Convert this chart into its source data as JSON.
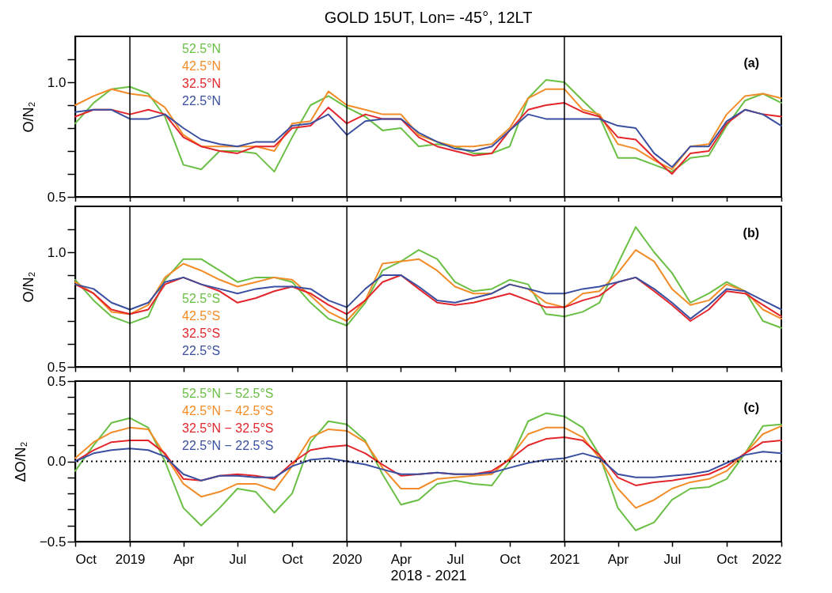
{
  "chart_data": [
    {
      "type": "line",
      "title": "GOLD 15UT, Lon= -45°, 12LT",
      "ylabel": "O/N₂",
      "annotations": [
        "(a)"
      ],
      "tick_labels": "y",
      "x": [
        "2018-10",
        "2018-11",
        "2018-12",
        "2019-01",
        "2019-02",
        "2019-03",
        "2019-04",
        "2019-05",
        "2019-06",
        "2019-07",
        "2019-08",
        "2019-09",
        "2019-10",
        "2019-11",
        "2019-12",
        "2020-01",
        "2020-02",
        "2020-03",
        "2020-04",
        "2020-05",
        "2020-06",
        "2020-07",
        "2020-08",
        "2020-09",
        "2020-10",
        "2020-11",
        "2020-12",
        "2021-01",
        "2021-02",
        "2021-03",
        "2021-04",
        "2021-05",
        "2021-06",
        "2021-07",
        "2021-08",
        "2021-09",
        "2021-10",
        "2021-11",
        "2021-12",
        "2022-01"
      ],
      "xlim": [
        "2018-10",
        "2022-01"
      ],
      "xticks": [
        {
          "value": "2018-10",
          "label": null
        },
        {
          "value": "2019-01",
          "label": null
        },
        {
          "value": "2019-04",
          "label": null
        },
        {
          "value": "2019-07",
          "label": null
        },
        {
          "value": "2019-10",
          "label": null
        },
        {
          "value": "2020-01",
          "label": null
        },
        {
          "value": "2020-04",
          "label": null
        },
        {
          "value": "2020-07",
          "label": null
        },
        {
          "value": "2020-10",
          "label": null
        },
        {
          "value": "2021-01",
          "label": null
        },
        {
          "value": "2021-04",
          "label": null
        },
        {
          "value": "2021-07",
          "label": null
        },
        {
          "value": "2021-10",
          "label": null
        },
        {
          "value": "2022-01",
          "label": null
        }
      ],
      "ylim": [
        0.5,
        1.2
      ],
      "yticks": [
        {
          "value": 0.5,
          "label": "0.5"
        },
        {
          "value": 0.6,
          "label": null
        },
        {
          "value": 0.7,
          "label": null
        },
        {
          "value": 0.8,
          "label": null
        },
        {
          "value": 0.9,
          "label": null
        },
        {
          "value": 1.0,
          "label": "1.0"
        },
        {
          "value": 1.1,
          "label": null
        }
      ],
      "ref_lines": [
        {
          "axis": "x",
          "value": "2019-01",
          "color": "#000000"
        },
        {
          "axis": "x",
          "value": "2020-01",
          "color": "#000000"
        },
        {
          "axis": "x",
          "value": "2021-01",
          "color": "#000000"
        }
      ],
      "series": [
        {
          "name": "52.5°N",
          "color": "#6abf45",
          "values": [
            0.82,
            0.91,
            0.97,
            0.98,
            0.95,
            0.85,
            0.64,
            0.62,
            0.7,
            0.7,
            0.69,
            0.61,
            0.76,
            0.9,
            0.94,
            0.89,
            0.85,
            0.79,
            0.8,
            0.72,
            0.73,
            0.72,
            0.69,
            0.69,
            0.72,
            0.93,
            1.01,
            1.0,
            0.92,
            0.85,
            0.67,
            0.67,
            0.64,
            0.61,
            0.67,
            0.68,
            0.81,
            0.92,
            0.95,
            0.91
          ]
        },
        {
          "name": "42.5°N",
          "color": "#f28c28",
          "values": [
            0.9,
            0.94,
            0.97,
            0.95,
            0.94,
            0.89,
            0.77,
            0.72,
            0.72,
            0.72,
            0.72,
            0.7,
            0.82,
            0.83,
            0.96,
            0.9,
            0.88,
            0.86,
            0.86,
            0.77,
            0.74,
            0.72,
            0.72,
            0.73,
            0.8,
            0.93,
            0.97,
            0.97,
            0.88,
            0.86,
            0.73,
            0.71,
            0.66,
            0.62,
            0.72,
            0.73,
            0.86,
            0.94,
            0.95,
            0.93
          ]
        },
        {
          "name": "32.5°N",
          "color": "#e3262b",
          "values": [
            0.85,
            0.88,
            0.88,
            0.86,
            0.88,
            0.86,
            0.76,
            0.72,
            0.7,
            0.69,
            0.72,
            0.72,
            0.8,
            0.81,
            0.89,
            0.82,
            0.86,
            0.84,
            0.84,
            0.76,
            0.72,
            0.7,
            0.68,
            0.69,
            0.79,
            0.88,
            0.9,
            0.91,
            0.87,
            0.85,
            0.76,
            0.75,
            0.67,
            0.6,
            0.69,
            0.7,
            0.82,
            0.88,
            0.86,
            0.85
          ]
        },
        {
          "name": "22.5°N",
          "color": "#3a4fa0",
          "values": [
            0.87,
            0.88,
            0.88,
            0.84,
            0.84,
            0.86,
            0.8,
            0.75,
            0.73,
            0.72,
            0.74,
            0.74,
            0.81,
            0.82,
            0.86,
            0.77,
            0.83,
            0.84,
            0.84,
            0.78,
            0.74,
            0.71,
            0.7,
            0.72,
            0.79,
            0.86,
            0.84,
            0.84,
            0.84,
            0.84,
            0.81,
            0.8,
            0.69,
            0.63,
            0.72,
            0.72,
            0.83,
            0.88,
            0.86,
            0.81
          ]
        }
      ]
    },
    {
      "type": "line",
      "ylabel": "O/N₂",
      "annotations": [
        "(b)"
      ],
      "tick_labels": "y",
      "x": [
        "2018-10",
        "2018-11",
        "2018-12",
        "2019-01",
        "2019-02",
        "2019-03",
        "2019-04",
        "2019-05",
        "2019-06",
        "2019-07",
        "2019-08",
        "2019-09",
        "2019-10",
        "2019-11",
        "2019-12",
        "2020-01",
        "2020-02",
        "2020-03",
        "2020-04",
        "2020-05",
        "2020-06",
        "2020-07",
        "2020-08",
        "2020-09",
        "2020-10",
        "2020-11",
        "2020-12",
        "2021-01",
        "2021-02",
        "2021-03",
        "2021-04",
        "2021-05",
        "2021-06",
        "2021-07",
        "2021-08",
        "2021-09",
        "2021-10",
        "2021-11",
        "2021-12",
        "2022-01"
      ],
      "xlim": [
        "2018-10",
        "2022-01"
      ],
      "xticks": [
        {
          "value": "2018-10",
          "label": null
        },
        {
          "value": "2019-01",
          "label": null
        },
        {
          "value": "2019-04",
          "label": null
        },
        {
          "value": "2019-07",
          "label": null
        },
        {
          "value": "2019-10",
          "label": null
        },
        {
          "value": "2020-01",
          "label": null
        },
        {
          "value": "2020-04",
          "label": null
        },
        {
          "value": "2020-07",
          "label": null
        },
        {
          "value": "2020-10",
          "label": null
        },
        {
          "value": "2021-01",
          "label": null
        },
        {
          "value": "2021-04",
          "label": null
        },
        {
          "value": "2021-07",
          "label": null
        },
        {
          "value": "2021-10",
          "label": null
        },
        {
          "value": "2022-01",
          "label": null
        }
      ],
      "ylim": [
        0.5,
        1.2
      ],
      "yticks": [
        {
          "value": 0.5,
          "label": "0.5"
        },
        {
          "value": 0.6,
          "label": null
        },
        {
          "value": 0.7,
          "label": null
        },
        {
          "value": 0.8,
          "label": null
        },
        {
          "value": 0.9,
          "label": null
        },
        {
          "value": 1.0,
          "label": "1.0"
        },
        {
          "value": 1.1,
          "label": null
        }
      ],
      "ref_lines": [
        {
          "axis": "x",
          "value": "2019-01",
          "color": "#000000"
        },
        {
          "axis": "x",
          "value": "2020-01",
          "color": "#000000"
        },
        {
          "axis": "x",
          "value": "2021-01",
          "color": "#000000"
        }
      ],
      "series": [
        {
          "name": "52.5°S",
          "color": "#6abf45",
          "values": [
            0.88,
            0.79,
            0.72,
            0.69,
            0.72,
            0.88,
            0.97,
            0.97,
            0.92,
            0.87,
            0.89,
            0.89,
            0.87,
            0.78,
            0.71,
            0.68,
            0.78,
            0.92,
            0.96,
            1.01,
            0.97,
            0.87,
            0.83,
            0.84,
            0.88,
            0.86,
            0.73,
            0.72,
            0.74,
            0.78,
            0.95,
            1.11,
            1.0,
            0.91,
            0.78,
            0.82,
            0.87,
            0.83,
            0.7,
            0.67
          ]
        },
        {
          "name": "42.5°S",
          "color": "#f28c28",
          "values": [
            0.87,
            0.82,
            0.74,
            0.73,
            0.77,
            0.89,
            0.95,
            0.92,
            0.88,
            0.85,
            0.87,
            0.89,
            0.88,
            0.81,
            0.74,
            0.7,
            0.79,
            0.95,
            0.96,
            0.97,
            0.92,
            0.85,
            0.82,
            0.82,
            0.86,
            0.84,
            0.78,
            0.76,
            0.82,
            0.83,
            0.91,
            1.01,
            0.96,
            0.84,
            0.77,
            0.79,
            0.86,
            0.83,
            0.75,
            0.71
          ]
        },
        {
          "name": "32.5°S",
          "color": "#e3262b",
          "values": [
            0.86,
            0.82,
            0.75,
            0.73,
            0.75,
            0.86,
            0.89,
            0.86,
            0.83,
            0.78,
            0.8,
            0.83,
            0.85,
            0.82,
            0.77,
            0.73,
            0.79,
            0.87,
            0.9,
            0.84,
            0.78,
            0.77,
            0.78,
            0.8,
            0.82,
            0.79,
            0.76,
            0.76,
            0.79,
            0.81,
            0.87,
            0.89,
            0.83,
            0.77,
            0.7,
            0.75,
            0.83,
            0.82,
            0.77,
            0.72
          ]
        },
        {
          "name": "22.5°S",
          "color": "#3a4fa0",
          "values": [
            0.86,
            0.84,
            0.78,
            0.75,
            0.78,
            0.87,
            0.89,
            0.86,
            0.84,
            0.82,
            0.84,
            0.85,
            0.85,
            0.84,
            0.79,
            0.76,
            0.84,
            0.9,
            0.9,
            0.85,
            0.79,
            0.78,
            0.8,
            0.82,
            0.86,
            0.84,
            0.82,
            0.82,
            0.84,
            0.85,
            0.87,
            0.89,
            0.84,
            0.78,
            0.71,
            0.77,
            0.84,
            0.83,
            0.79,
            0.75
          ]
        }
      ]
    },
    {
      "type": "line",
      "ylabel": "ΔO/N₂",
      "xlabel": "2018 - 2021",
      "annotations": [
        "(c)"
      ],
      "x": [
        "2018-10",
        "2018-11",
        "2018-12",
        "2019-01",
        "2019-02",
        "2019-03",
        "2019-04",
        "2019-05",
        "2019-06",
        "2019-07",
        "2019-08",
        "2019-09",
        "2019-10",
        "2019-11",
        "2019-12",
        "2020-01",
        "2020-02",
        "2020-03",
        "2020-04",
        "2020-05",
        "2020-06",
        "2020-07",
        "2020-08",
        "2020-09",
        "2020-10",
        "2020-11",
        "2020-12",
        "2021-01",
        "2021-02",
        "2021-03",
        "2021-04",
        "2021-05",
        "2021-06",
        "2021-07",
        "2021-08",
        "2021-09",
        "2021-10",
        "2021-11",
        "2021-12",
        "2022-01"
      ],
      "xlim": [
        "2018-10",
        "2022-01"
      ],
      "xticks": [
        {
          "value": "2018-10",
          "label": "Oct"
        },
        {
          "value": "2019-01",
          "label": "2019"
        },
        {
          "value": "2019-04",
          "label": "Apr"
        },
        {
          "value": "2019-07",
          "label": "Jul"
        },
        {
          "value": "2019-10",
          "label": "Oct"
        },
        {
          "value": "2020-01",
          "label": "2020"
        },
        {
          "value": "2020-04",
          "label": "Apr"
        },
        {
          "value": "2020-07",
          "label": "Jul"
        },
        {
          "value": "2020-10",
          "label": "Oct"
        },
        {
          "value": "2021-01",
          "label": "2021"
        },
        {
          "value": "2021-04",
          "label": "Apr"
        },
        {
          "value": "2021-07",
          "label": "Jul"
        },
        {
          "value": "2021-10",
          "label": "Oct"
        },
        {
          "value": "2022-01",
          "label": "2022"
        }
      ],
      "ylim": [
        -0.5,
        0.5
      ],
      "yticks": [
        {
          "value": -0.5,
          "label": "−0.5"
        },
        {
          "value": -0.4,
          "label": null
        },
        {
          "value": -0.3,
          "label": null
        },
        {
          "value": -0.2,
          "label": null
        },
        {
          "value": -0.1,
          "label": null
        },
        {
          "value": 0,
          "label": "0.0"
        },
        {
          "value": 0.1,
          "label": null
        },
        {
          "value": 0.2,
          "label": null
        },
        {
          "value": 0.3,
          "label": null
        },
        {
          "value": 0.4,
          "label": null
        },
        {
          "value": 0.5,
          "label": "0.5"
        }
      ],
      "ref_lines": [
        {
          "axis": "x",
          "value": "2019-01",
          "color": "#000000"
        },
        {
          "axis": "x",
          "value": "2020-01",
          "color": "#000000"
        },
        {
          "axis": "x",
          "value": "2021-01",
          "color": "#000000"
        },
        {
          "axis": "y",
          "value": 0,
          "color": "#000000",
          "line_style": "dotted"
        }
      ],
      "series": [
        {
          "name": "52.5°N − 52.5°S",
          "color": "#6abf45",
          "values": [
            -0.06,
            0.1,
            0.24,
            0.27,
            0.21,
            0.0,
            -0.29,
            -0.4,
            -0.29,
            -0.17,
            -0.19,
            -0.32,
            -0.2,
            0.12,
            0.25,
            0.23,
            0.13,
            -0.08,
            -0.27,
            -0.24,
            -0.14,
            -0.12,
            -0.14,
            -0.15,
            0.0,
            0.25,
            0.3,
            0.28,
            0.21,
            0.04,
            -0.29,
            -0.43,
            -0.38,
            -0.24,
            -0.17,
            -0.16,
            -0.11,
            0.05,
            0.22,
            0.23
          ]
        },
        {
          "name": "42.5°N − 42.5°S",
          "color": "#f28c28",
          "values": [
            0.02,
            0.12,
            0.18,
            0.21,
            0.2,
            0.04,
            -0.14,
            -0.22,
            -0.19,
            -0.14,
            -0.14,
            -0.18,
            -0.03,
            0.15,
            0.2,
            0.19,
            0.12,
            -0.04,
            -0.17,
            -0.17,
            -0.11,
            -0.1,
            -0.09,
            -0.08,
            0.02,
            0.17,
            0.21,
            0.21,
            0.15,
            0.02,
            -0.17,
            -0.29,
            -0.24,
            -0.17,
            -0.13,
            -0.11,
            -0.06,
            0.05,
            0.17,
            0.22
          ]
        },
        {
          "name": "32.5°N − 32.5°S",
          "color": "#e3262b",
          "values": [
            0.0,
            0.07,
            0.12,
            0.13,
            0.13,
            0.05,
            -0.11,
            -0.12,
            -0.09,
            -0.08,
            -0.09,
            -0.11,
            -0.01,
            0.07,
            0.09,
            0.1,
            0.05,
            -0.02,
            -0.09,
            -0.08,
            -0.07,
            -0.08,
            -0.08,
            -0.06,
            0.01,
            0.1,
            0.14,
            0.15,
            0.13,
            0.04,
            -0.1,
            -0.15,
            -0.13,
            -0.12,
            -0.1,
            -0.08,
            -0.03,
            0.05,
            0.12,
            0.13
          ]
        },
        {
          "name": "22.5°N − 22.5°S",
          "color": "#3a4fa0",
          "values": [
            0.0,
            0.05,
            0.07,
            0.08,
            0.07,
            0.03,
            -0.08,
            -0.12,
            -0.09,
            -0.09,
            -0.1,
            -0.1,
            -0.03,
            0.01,
            0.02,
            0.0,
            -0.02,
            -0.05,
            -0.08,
            -0.08,
            -0.07,
            -0.08,
            -0.08,
            -0.07,
            -0.04,
            -0.01,
            0.01,
            0.02,
            0.05,
            0.02,
            -0.08,
            -0.1,
            -0.1,
            -0.09,
            -0.08,
            -0.06,
            -0.01,
            0.04,
            0.06,
            0.05
          ]
        }
      ]
    }
  ]
}
